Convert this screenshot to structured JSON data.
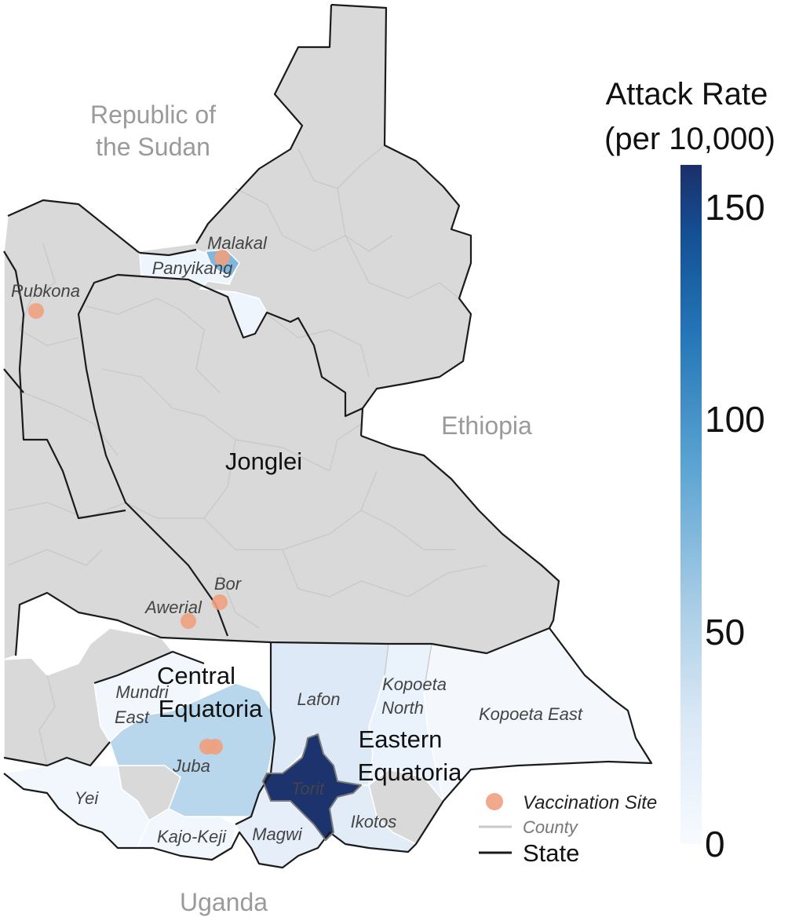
{
  "country_labels": {
    "sudan_line1": "Republic of",
    "sudan_line2": "the Sudan",
    "ethiopia": "Ethiopia",
    "uganda": "Uganda"
  },
  "state_labels": {
    "jonglei": "Jonglei",
    "central_line1": "Central",
    "central_line2": "Equatoria",
    "eastern_line1": "Eastern",
    "eastern_line2": "Equatoria"
  },
  "county_labels": {
    "malakal": "Malakal",
    "panyikang": "Panyikang",
    "rubkona": "Rubkona",
    "bor": "Bor",
    "awerial": "Awerial",
    "mundri_line1": "Mundri",
    "mundri_line2": "East",
    "juba": "Juba",
    "yei": "Yei",
    "kajo_keji": "Kajo-Keji",
    "magwi": "Magwi",
    "torit": "Torit",
    "ikotos": "Ikotos",
    "lafon": "Lafon",
    "kopoeta_north_line1": "Kopoeta",
    "kopoeta_north_line2": "North",
    "kopoeta_east": "Kopoeta East"
  },
  "legend": {
    "title_line1": "Attack Rate",
    "title_line2": "(per 10,000)",
    "ticks": [
      "150",
      "100",
      "50",
      "0"
    ],
    "key_vaccination": "Vaccination Site",
    "key_county": "County",
    "key_state": "State"
  },
  "colors": {
    "no_data": "#d9d9d9",
    "scale_low": "#f7fbff",
    "scale_high": "#1b3a75",
    "vaccination_site": "#f0a07e",
    "county_line": "#c9c9c9",
    "state_line": "#1b1b1b"
  },
  "chart_data": {
    "type": "choropleth",
    "metric": "Attack Rate (per 10,000)",
    "scale_range": [
      0,
      160
    ],
    "attack_rates": {
      "Torit": 155,
      "Juba": 45,
      "Malakal": 70,
      "Panyikang": 5,
      "Lafon": 10,
      "Magwi": 8,
      "Ikotos": 8,
      "Kopoeta North": 4,
      "Kopoeta East": 3,
      "Mundri East": 2,
      "Yei": 2,
      "Kajo-Keji": 2
    },
    "vaccination_sites": [
      "Malakal",
      "Rubkona",
      "Bor",
      "Awerial",
      "Juba",
      "Juba"
    ]
  }
}
